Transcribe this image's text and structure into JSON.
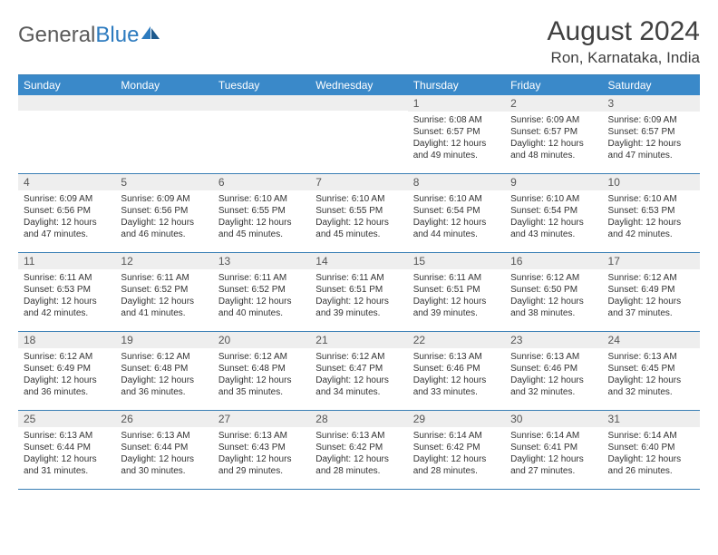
{
  "logo": {
    "text1": "General",
    "text2": "Blue"
  },
  "title": "August 2024",
  "subtitle": "Ron, Karnataka, India",
  "colors": {
    "header_bg": "#3a89c9",
    "header_text": "#ffffff",
    "rule": "#3a7fb5",
    "daynum_bg": "#eeeeee",
    "text": "#333333",
    "logo_gray": "#5a5a5a",
    "logo_blue": "#2d7bbf"
  },
  "days_of_week": [
    "Sunday",
    "Monday",
    "Tuesday",
    "Wednesday",
    "Thursday",
    "Friday",
    "Saturday"
  ],
  "weeks": [
    [
      {
        "num": "",
        "sunrise": "",
        "sunset": "",
        "daylight1": "",
        "daylight2": ""
      },
      {
        "num": "",
        "sunrise": "",
        "sunset": "",
        "daylight1": "",
        "daylight2": ""
      },
      {
        "num": "",
        "sunrise": "",
        "sunset": "",
        "daylight1": "",
        "daylight2": ""
      },
      {
        "num": "",
        "sunrise": "",
        "sunset": "",
        "daylight1": "",
        "daylight2": ""
      },
      {
        "num": "1",
        "sunrise": "Sunrise: 6:08 AM",
        "sunset": "Sunset: 6:57 PM",
        "daylight1": "Daylight: 12 hours",
        "daylight2": "and 49 minutes."
      },
      {
        "num": "2",
        "sunrise": "Sunrise: 6:09 AM",
        "sunset": "Sunset: 6:57 PM",
        "daylight1": "Daylight: 12 hours",
        "daylight2": "and 48 minutes."
      },
      {
        "num": "3",
        "sunrise": "Sunrise: 6:09 AM",
        "sunset": "Sunset: 6:57 PM",
        "daylight1": "Daylight: 12 hours",
        "daylight2": "and 47 minutes."
      }
    ],
    [
      {
        "num": "4",
        "sunrise": "Sunrise: 6:09 AM",
        "sunset": "Sunset: 6:56 PM",
        "daylight1": "Daylight: 12 hours",
        "daylight2": "and 47 minutes."
      },
      {
        "num": "5",
        "sunrise": "Sunrise: 6:09 AM",
        "sunset": "Sunset: 6:56 PM",
        "daylight1": "Daylight: 12 hours",
        "daylight2": "and 46 minutes."
      },
      {
        "num": "6",
        "sunrise": "Sunrise: 6:10 AM",
        "sunset": "Sunset: 6:55 PM",
        "daylight1": "Daylight: 12 hours",
        "daylight2": "and 45 minutes."
      },
      {
        "num": "7",
        "sunrise": "Sunrise: 6:10 AM",
        "sunset": "Sunset: 6:55 PM",
        "daylight1": "Daylight: 12 hours",
        "daylight2": "and 45 minutes."
      },
      {
        "num": "8",
        "sunrise": "Sunrise: 6:10 AM",
        "sunset": "Sunset: 6:54 PM",
        "daylight1": "Daylight: 12 hours",
        "daylight2": "and 44 minutes."
      },
      {
        "num": "9",
        "sunrise": "Sunrise: 6:10 AM",
        "sunset": "Sunset: 6:54 PM",
        "daylight1": "Daylight: 12 hours",
        "daylight2": "and 43 minutes."
      },
      {
        "num": "10",
        "sunrise": "Sunrise: 6:10 AM",
        "sunset": "Sunset: 6:53 PM",
        "daylight1": "Daylight: 12 hours",
        "daylight2": "and 42 minutes."
      }
    ],
    [
      {
        "num": "11",
        "sunrise": "Sunrise: 6:11 AM",
        "sunset": "Sunset: 6:53 PM",
        "daylight1": "Daylight: 12 hours",
        "daylight2": "and 42 minutes."
      },
      {
        "num": "12",
        "sunrise": "Sunrise: 6:11 AM",
        "sunset": "Sunset: 6:52 PM",
        "daylight1": "Daylight: 12 hours",
        "daylight2": "and 41 minutes."
      },
      {
        "num": "13",
        "sunrise": "Sunrise: 6:11 AM",
        "sunset": "Sunset: 6:52 PM",
        "daylight1": "Daylight: 12 hours",
        "daylight2": "and 40 minutes."
      },
      {
        "num": "14",
        "sunrise": "Sunrise: 6:11 AM",
        "sunset": "Sunset: 6:51 PM",
        "daylight1": "Daylight: 12 hours",
        "daylight2": "and 39 minutes."
      },
      {
        "num": "15",
        "sunrise": "Sunrise: 6:11 AM",
        "sunset": "Sunset: 6:51 PM",
        "daylight1": "Daylight: 12 hours",
        "daylight2": "and 39 minutes."
      },
      {
        "num": "16",
        "sunrise": "Sunrise: 6:12 AM",
        "sunset": "Sunset: 6:50 PM",
        "daylight1": "Daylight: 12 hours",
        "daylight2": "and 38 minutes."
      },
      {
        "num": "17",
        "sunrise": "Sunrise: 6:12 AM",
        "sunset": "Sunset: 6:49 PM",
        "daylight1": "Daylight: 12 hours",
        "daylight2": "and 37 minutes."
      }
    ],
    [
      {
        "num": "18",
        "sunrise": "Sunrise: 6:12 AM",
        "sunset": "Sunset: 6:49 PM",
        "daylight1": "Daylight: 12 hours",
        "daylight2": "and 36 minutes."
      },
      {
        "num": "19",
        "sunrise": "Sunrise: 6:12 AM",
        "sunset": "Sunset: 6:48 PM",
        "daylight1": "Daylight: 12 hours",
        "daylight2": "and 36 minutes."
      },
      {
        "num": "20",
        "sunrise": "Sunrise: 6:12 AM",
        "sunset": "Sunset: 6:48 PM",
        "daylight1": "Daylight: 12 hours",
        "daylight2": "and 35 minutes."
      },
      {
        "num": "21",
        "sunrise": "Sunrise: 6:12 AM",
        "sunset": "Sunset: 6:47 PM",
        "daylight1": "Daylight: 12 hours",
        "daylight2": "and 34 minutes."
      },
      {
        "num": "22",
        "sunrise": "Sunrise: 6:13 AM",
        "sunset": "Sunset: 6:46 PM",
        "daylight1": "Daylight: 12 hours",
        "daylight2": "and 33 minutes."
      },
      {
        "num": "23",
        "sunrise": "Sunrise: 6:13 AM",
        "sunset": "Sunset: 6:46 PM",
        "daylight1": "Daylight: 12 hours",
        "daylight2": "and 32 minutes."
      },
      {
        "num": "24",
        "sunrise": "Sunrise: 6:13 AM",
        "sunset": "Sunset: 6:45 PM",
        "daylight1": "Daylight: 12 hours",
        "daylight2": "and 32 minutes."
      }
    ],
    [
      {
        "num": "25",
        "sunrise": "Sunrise: 6:13 AM",
        "sunset": "Sunset: 6:44 PM",
        "daylight1": "Daylight: 12 hours",
        "daylight2": "and 31 minutes."
      },
      {
        "num": "26",
        "sunrise": "Sunrise: 6:13 AM",
        "sunset": "Sunset: 6:44 PM",
        "daylight1": "Daylight: 12 hours",
        "daylight2": "and 30 minutes."
      },
      {
        "num": "27",
        "sunrise": "Sunrise: 6:13 AM",
        "sunset": "Sunset: 6:43 PM",
        "daylight1": "Daylight: 12 hours",
        "daylight2": "and 29 minutes."
      },
      {
        "num": "28",
        "sunrise": "Sunrise: 6:13 AM",
        "sunset": "Sunset: 6:42 PM",
        "daylight1": "Daylight: 12 hours",
        "daylight2": "and 28 minutes."
      },
      {
        "num": "29",
        "sunrise": "Sunrise: 6:14 AM",
        "sunset": "Sunset: 6:42 PM",
        "daylight1": "Daylight: 12 hours",
        "daylight2": "and 28 minutes."
      },
      {
        "num": "30",
        "sunrise": "Sunrise: 6:14 AM",
        "sunset": "Sunset: 6:41 PM",
        "daylight1": "Daylight: 12 hours",
        "daylight2": "and 27 minutes."
      },
      {
        "num": "31",
        "sunrise": "Sunrise: 6:14 AM",
        "sunset": "Sunset: 6:40 PM",
        "daylight1": "Daylight: 12 hours",
        "daylight2": "and 26 minutes."
      }
    ]
  ]
}
